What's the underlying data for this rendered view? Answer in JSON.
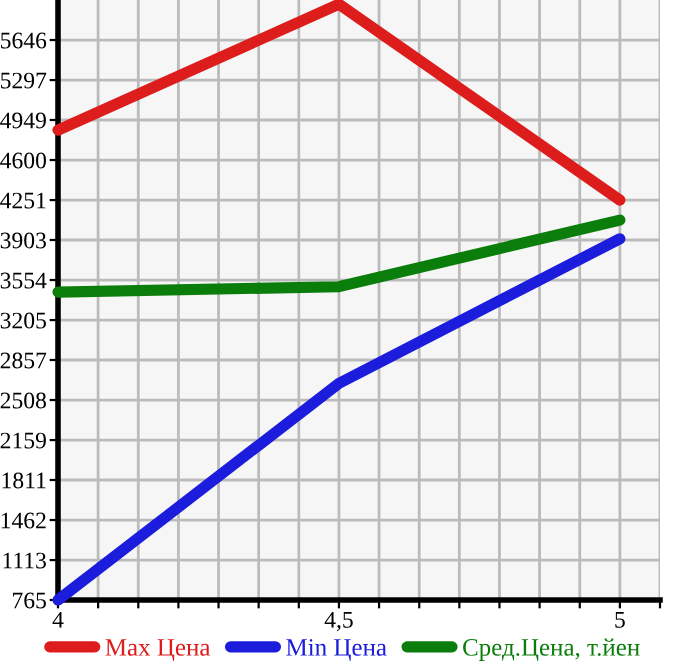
{
  "chart_data": {
    "type": "line",
    "x": [
      4,
      4.5,
      5
    ],
    "series": [
      {
        "name": "Max Цена",
        "color": "#dd1c1c",
        "values": [
          4861,
          5959,
          4251
        ]
      },
      {
        "name": "Min Цена",
        "color": "#1c1cdd",
        "values": [
          765,
          2653,
          3914
        ]
      },
      {
        "name": "Сред.Цена, т.йен",
        "color": "#0a7d0a",
        "values": [
          3449,
          3496,
          4077
        ]
      }
    ],
    "xlim": [
      4,
      5.0714
    ],
    "xticks": [
      {
        "value": 4,
        "label": "4"
      },
      {
        "value": 4.0714,
        "label": null
      },
      {
        "value": 4.1429,
        "label": null
      },
      {
        "value": 4.2143,
        "label": null
      },
      {
        "value": 4.2857,
        "label": null
      },
      {
        "value": 4.3571,
        "label": null
      },
      {
        "value": 4.4286,
        "label": null
      },
      {
        "value": 4.5,
        "label": "4,5"
      },
      {
        "value": 4.5714,
        "label": null
      },
      {
        "value": 4.6429,
        "label": null
      },
      {
        "value": 4.7143,
        "label": null
      },
      {
        "value": 4.7857,
        "label": null
      },
      {
        "value": 4.8571,
        "label": null
      },
      {
        "value": 4.9286,
        "label": null
      },
      {
        "value": 5,
        "label": "5"
      },
      {
        "value": 5.0714,
        "label": null
      }
    ],
    "ylim": [
      765,
      5995
    ],
    "yticks": [
      765,
      1113,
      1462,
      1811,
      2159,
      2508,
      2857,
      3205,
      3554,
      3903,
      4251,
      4600,
      4949,
      5297,
      5646
    ],
    "grid": true,
    "legend": "bottom",
    "marker": "none",
    "line_style": "solid"
  }
}
